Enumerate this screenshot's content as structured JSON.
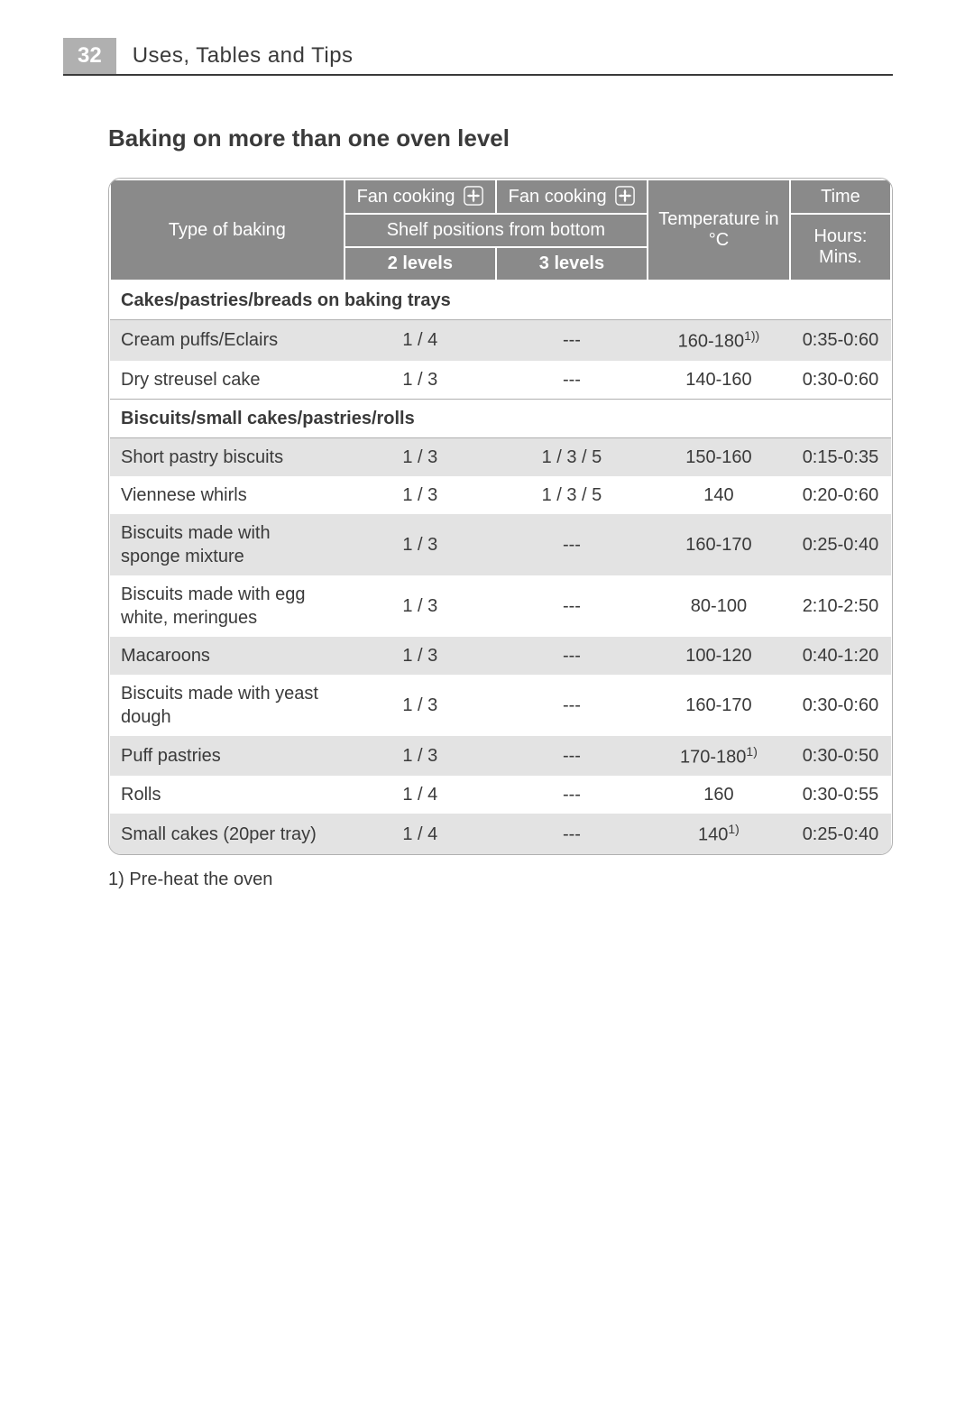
{
  "page_header": {
    "page_number": "32",
    "section": "Uses, Tables and Tips"
  },
  "heading": "Baking on more than one oven level",
  "table": {
    "header": {
      "type_of_baking": "Type of baking",
      "fan_cooking": "Fan cooking",
      "shelf_positions": "Shelf positions from bottom",
      "two_levels": "2 levels",
      "three_levels": "3 levels",
      "temperature": "Temperature in °C",
      "time": "Time",
      "time_sub": "Hours: Mins."
    },
    "group1_label": "Cakes/pastries/breads on baking trays",
    "group1_rows": [
      {
        "label": "Cream puffs/Eclairs",
        "two": "1 / 4",
        "three": "---",
        "temp": "160-180",
        "temp_sup": "1))",
        "time": "0:35-0:60"
      },
      {
        "label": "Dry streusel cake",
        "two": "1 / 3",
        "three": "---",
        "temp": "140-160",
        "temp_sup": "",
        "time": "0:30-0:60"
      }
    ],
    "group2_label": "Biscuits/small cakes/pastries/rolls",
    "group2_rows": [
      {
        "label": "Short pastry biscuits",
        "two": "1 / 3",
        "three": "1 / 3 / 5",
        "temp": "150-160",
        "temp_sup": "",
        "time": "0:15-0:35"
      },
      {
        "label": "Viennese whirls",
        "two": "1 / 3",
        "three": "1 / 3 / 5",
        "temp": "140",
        "temp_sup": "",
        "time": "0:20-0:60"
      },
      {
        "label": "Biscuits made with sponge mixture",
        "two": "1 / 3",
        "three": "---",
        "temp": "160-170",
        "temp_sup": "",
        "time": "0:25-0:40"
      },
      {
        "label": "Biscuits made with egg white, meringues",
        "two": "1 / 3",
        "three": "---",
        "temp": "80-100",
        "temp_sup": "",
        "time": "2:10-2:50"
      },
      {
        "label": "Macaroons",
        "two": "1 / 3",
        "three": "---",
        "temp": "100-120",
        "temp_sup": "",
        "time": "0:40-1:20"
      },
      {
        "label": "Biscuits made with yeast dough",
        "two": "1 / 3",
        "three": "---",
        "temp": "160-170",
        "temp_sup": "",
        "time": "0:30-0:60"
      },
      {
        "label": "Puff pastries",
        "two": "1 / 3",
        "three": "---",
        "temp": "170-180",
        "temp_sup": "1)",
        "time": "0:30-0:50"
      },
      {
        "label": "Rolls",
        "two": "1 / 4",
        "three": "---",
        "temp": "160",
        "temp_sup": "",
        "time": "0:30-0:55"
      },
      {
        "label": "Small cakes (20per tray)",
        "two": "1 / 4",
        "three": "---",
        "temp": "140",
        "temp_sup": "1)",
        "time": "0:25-0:40"
      }
    ]
  },
  "footnote": "1) Pre-heat the oven",
  "colors": {
    "header_bg": "#8a8a8a",
    "header_text": "#ffffff",
    "row_grey": "#e3e3e3",
    "row_white": "#ffffff",
    "border": "#b0b0b0",
    "text": "#3a3a3a",
    "page_box_bg": "#b0b0b0"
  }
}
